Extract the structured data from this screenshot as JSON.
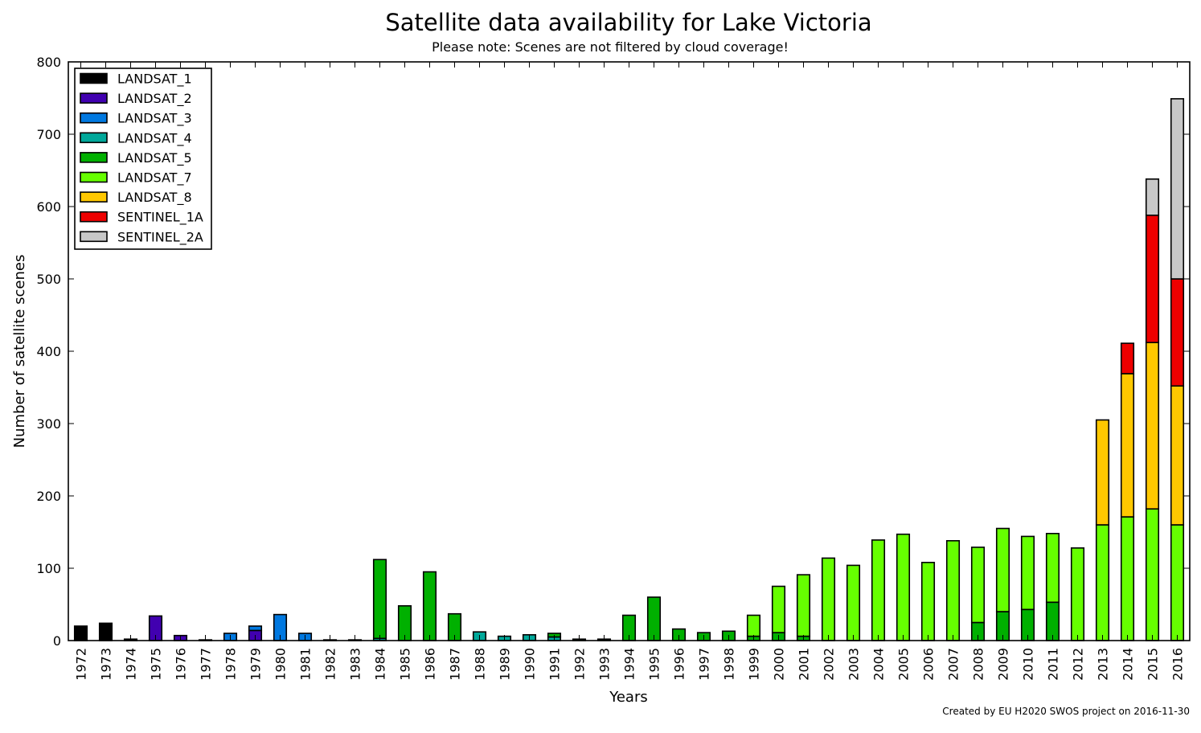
{
  "chart_data": {
    "type": "bar",
    "stacked": true,
    "title": "Satellite data availability for Lake Victoria",
    "subtitle": "Please note: Scenes are not filtered by cloud coverage!",
    "xlabel": "Years",
    "ylabel": "Number of satellite scenes",
    "footer": "Created by EU H2020 SWOS project on 2016-11-30",
    "ylim": [
      0,
      800
    ],
    "yticks": [
      0,
      100,
      200,
      300,
      400,
      500,
      600,
      700,
      800
    ],
    "grid": false,
    "legend_position": "top-left",
    "categories": [
      "1972",
      "1973",
      "1974",
      "1975",
      "1976",
      "1977",
      "1978",
      "1979",
      "1980",
      "1981",
      "1982",
      "1983",
      "1984",
      "1985",
      "1986",
      "1987",
      "1988",
      "1989",
      "1990",
      "1991",
      "1992",
      "1993",
      "1994",
      "1995",
      "1996",
      "1997",
      "1998",
      "1999",
      "2000",
      "2001",
      "2002",
      "2003",
      "2004",
      "2005",
      "2006",
      "2007",
      "2008",
      "2009",
      "2010",
      "2011",
      "2012",
      "2013",
      "2014",
      "2015",
      "2016"
    ],
    "series": [
      {
        "name": "LANDSAT_1",
        "color": "#000000",
        "values": [
          20,
          24,
          2,
          0,
          0,
          0,
          0,
          0,
          0,
          0,
          0,
          0,
          0,
          0,
          0,
          0,
          0,
          0,
          0,
          0,
          0,
          0,
          0,
          0,
          0,
          0,
          0,
          0,
          0,
          0,
          0,
          0,
          0,
          0,
          0,
          0,
          0,
          0,
          0,
          0,
          0,
          0,
          0,
          0,
          0
        ]
      },
      {
        "name": "LANDSAT_2",
        "color": "#4100b0",
        "values": [
          0,
          0,
          0,
          34,
          7,
          1,
          0,
          14,
          0,
          0,
          0,
          0,
          0,
          0,
          0,
          0,
          0,
          0,
          0,
          0,
          0,
          0,
          0,
          0,
          0,
          0,
          0,
          0,
          0,
          0,
          0,
          0,
          0,
          0,
          0,
          0,
          0,
          0,
          0,
          0,
          0,
          0,
          0,
          0,
          0
        ]
      },
      {
        "name": "LANDSAT_3",
        "color": "#0078e0",
        "values": [
          0,
          0,
          0,
          0,
          0,
          0,
          10,
          6,
          36,
          10,
          0,
          0,
          0,
          0,
          0,
          0,
          0,
          0,
          0,
          0,
          0,
          0,
          0,
          0,
          0,
          0,
          0,
          0,
          0,
          0,
          0,
          0,
          0,
          0,
          0,
          0,
          0,
          0,
          0,
          0,
          0,
          0,
          0,
          0,
          0
        ]
      },
      {
        "name": "LANDSAT_4",
        "color": "#00a89a",
        "values": [
          0,
          0,
          0,
          0,
          0,
          0,
          0,
          0,
          0,
          0,
          1,
          1,
          3,
          0,
          0,
          0,
          12,
          6,
          8,
          5,
          0,
          0,
          0,
          0,
          0,
          0,
          0,
          0,
          0,
          0,
          0,
          0,
          0,
          0,
          0,
          0,
          0,
          0,
          0,
          0,
          0,
          0,
          0,
          0,
          0
        ]
      },
      {
        "name": "LANDSAT_5",
        "color": "#00b000",
        "values": [
          0,
          0,
          0,
          0,
          0,
          0,
          0,
          0,
          0,
          0,
          0,
          0,
          109,
          48,
          95,
          37,
          0,
          0,
          0,
          5,
          2,
          2,
          35,
          60,
          16,
          11,
          13,
          6,
          11,
          6,
          0,
          0,
          0,
          0,
          0,
          0,
          25,
          40,
          43,
          53,
          0,
          0,
          0,
          0,
          0
        ]
      },
      {
        "name": "LANDSAT_7",
        "color": "#66ff00",
        "values": [
          0,
          0,
          0,
          0,
          0,
          0,
          0,
          0,
          0,
          0,
          0,
          0,
          0,
          0,
          0,
          0,
          0,
          0,
          0,
          0,
          0,
          0,
          0,
          0,
          0,
          0,
          0,
          29,
          64,
          85,
          114,
          104,
          139,
          147,
          108,
          138,
          104,
          115,
          101,
          95,
          128,
          160,
          171,
          182,
          160
        ]
      },
      {
        "name": "LANDSAT_8",
        "color": "#ffc800",
        "values": [
          0,
          0,
          0,
          0,
          0,
          0,
          0,
          0,
          0,
          0,
          0,
          0,
          0,
          0,
          0,
          0,
          0,
          0,
          0,
          0,
          0,
          0,
          0,
          0,
          0,
          0,
          0,
          0,
          0,
          0,
          0,
          0,
          0,
          0,
          0,
          0,
          0,
          0,
          0,
          0,
          0,
          145,
          198,
          230,
          192
        ]
      },
      {
        "name": "SENTINEL_1A",
        "color": "#ee0000",
        "values": [
          0,
          0,
          0,
          0,
          0,
          0,
          0,
          0,
          0,
          0,
          0,
          0,
          0,
          0,
          0,
          0,
          0,
          0,
          0,
          0,
          0,
          0,
          0,
          0,
          0,
          0,
          0,
          0,
          0,
          0,
          0,
          0,
          0,
          0,
          0,
          0,
          0,
          0,
          0,
          0,
          0,
          0,
          42,
          176,
          148
        ]
      },
      {
        "name": "SENTINEL_2A",
        "color": "#c8c8c8",
        "values": [
          0,
          0,
          0,
          0,
          0,
          0,
          0,
          0,
          0,
          0,
          0,
          0,
          0,
          0,
          0,
          0,
          0,
          0,
          0,
          0,
          0,
          0,
          0,
          0,
          0,
          0,
          0,
          0,
          0,
          0,
          0,
          0,
          0,
          0,
          0,
          0,
          0,
          0,
          0,
          0,
          0,
          0,
          0,
          50,
          249
        ]
      }
    ]
  }
}
